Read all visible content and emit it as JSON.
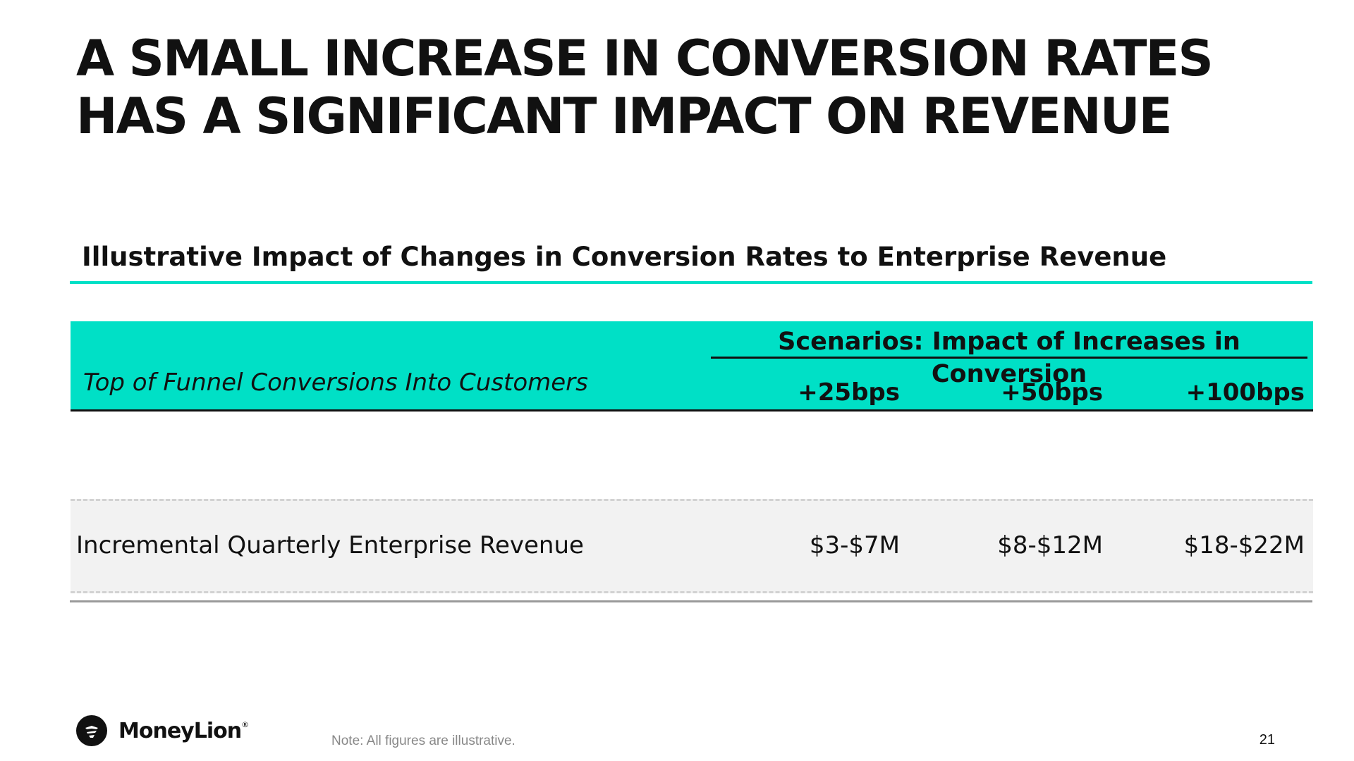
{
  "slide": {
    "title": "A SMALL INCREASE IN CONVERSION RATES HAS A SIGNIFICANT IMPACT ON REVENUE",
    "subtitle": "Illustrative Impact of Changes in Conversion Rates to Enterprise Revenue",
    "page_number": "21",
    "note": "Note: All figures are illustrative."
  },
  "table": {
    "row_header_label": "Top of Funnel Conversions Into Customers",
    "scenario_header": "Scenarios: Impact of Increases in Conversion",
    "columns": [
      "+25bps",
      "+50bps",
      "+100bps"
    ],
    "rows": [
      {
        "label": "Incremental Quarterly Enterprise Revenue",
        "values": [
          "$3-$7M",
          "$8-$12M",
          "$18-$22M"
        ]
      }
    ]
  },
  "brand": {
    "name": "MoneyLion",
    "registered_mark": "®",
    "logo_icon": "lion-head-icon",
    "accent_color": "#00e0c6"
  }
}
